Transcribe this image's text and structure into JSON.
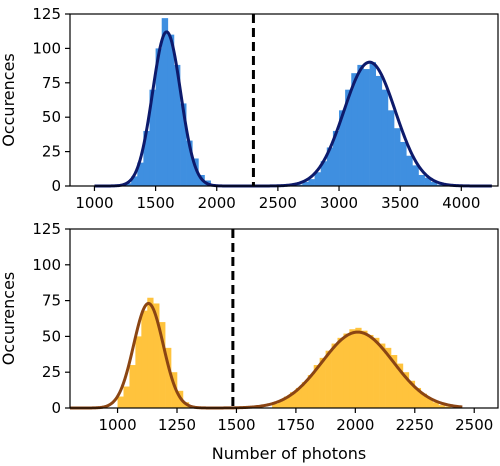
{
  "chart_data": [
    {
      "type": "bar",
      "xlabel": "",
      "ylabel": "Occurences",
      "xlim": [
        800,
        4300
      ],
      "ylim": [
        0,
        125
      ],
      "xticks": [
        1000,
        1500,
        2000,
        2500,
        3000,
        3500,
        4000
      ],
      "yticks": [
        0,
        25,
        50,
        75,
        100,
        125
      ],
      "threshold": 2300,
      "bar_color": "#3f8fe0",
      "fit_color": "#0d1a6b",
      "histogram": {
        "bin_width": 50,
        "bins_left": [
          1250,
          1300,
          1350,
          1400,
          1450,
          1500,
          1550,
          1600,
          1650,
          1700,
          1750,
          1800,
          1850,
          1900,
          1950,
          2000,
          2650,
          2700,
          2750,
          2800,
          2850,
          2900,
          2950,
          3000,
          3050,
          3100,
          3150,
          3200,
          3250,
          3300,
          3350,
          3400,
          3450,
          3500,
          3550,
          3600,
          3650,
          3700,
          3750,
          3800,
          3850
        ],
        "counts": [
          2,
          7,
          17,
          40,
          70,
          100,
          122,
          110,
          88,
          60,
          33,
          20,
          8,
          4,
          1,
          0,
          1,
          3,
          5,
          10,
          18,
          28,
          40,
          55,
          70,
          82,
          88,
          85,
          90,
          80,
          70,
          55,
          42,
          32,
          22,
          15,
          8,
          6,
          3,
          1,
          0
        ]
      },
      "fits": [
        {
          "mean": 1590,
          "sigma": 115,
          "amplitude": 112
        },
        {
          "mean": 3250,
          "sigma": 210,
          "amplitude": 90
        }
      ],
      "fit_range": [
        1000,
        4250
      ]
    },
    {
      "type": "bar",
      "xlabel": "Number of photons",
      "ylabel": "Occurences",
      "xlim": [
        800,
        2600
      ],
      "ylim": [
        0,
        125
      ],
      "xticks": [
        1000,
        1250,
        1500,
        1750,
        2000,
        2250,
        2500
      ],
      "yticks": [
        0,
        25,
        50,
        75,
        100,
        125
      ],
      "threshold": 1485,
      "bar_color": "#ffc33d",
      "fit_color": "#8b4513",
      "histogram": {
        "bin_width": 25,
        "bins_left": [
          1000,
          1025,
          1050,
          1075,
          1100,
          1125,
          1150,
          1175,
          1200,
          1225,
          1250,
          1275,
          1650,
          1675,
          1700,
          1725,
          1750,
          1775,
          1800,
          1825,
          1850,
          1875,
          1900,
          1925,
          1950,
          1975,
          2000,
          2025,
          2050,
          2075,
          2100,
          2125,
          2150,
          2175,
          2200,
          2225,
          2250,
          2275,
          2300,
          2325,
          2350,
          2375,
          2400
        ],
        "counts": [
          8,
          15,
          30,
          50,
          68,
          77,
          73,
          60,
          42,
          25,
          12,
          4,
          3,
          5,
          8,
          11,
          14,
          18,
          23,
          30,
          35,
          40,
          45,
          49,
          52,
          55,
          56,
          54,
          51,
          49,
          45,
          42,
          37,
          31,
          25,
          19,
          14,
          10,
          7,
          4,
          2,
          1,
          0
        ]
      },
      "fits": [
        {
          "mean": 1130,
          "sigma": 62,
          "amplitude": 73
        },
        {
          "mean": 2010,
          "sigma": 150,
          "amplitude": 53
        }
      ],
      "fit_range": [
        800,
        2450
      ]
    }
  ]
}
